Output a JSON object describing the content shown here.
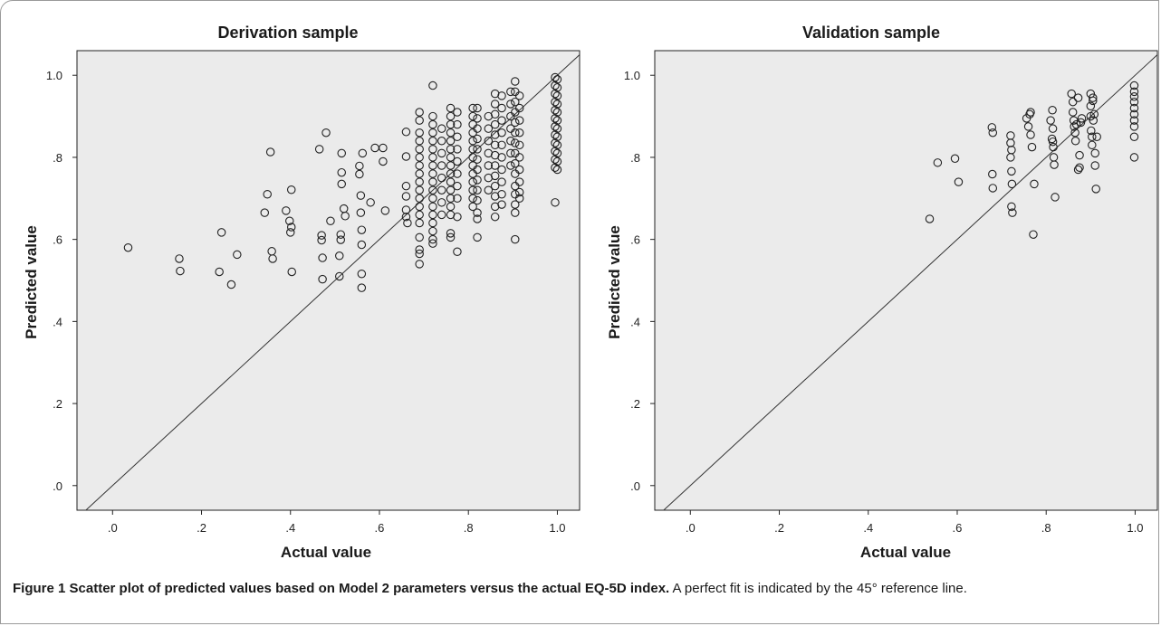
{
  "chart_data": [
    {
      "type": "scatter",
      "title": "Derivation sample",
      "xlabel": "Actual value",
      "ylabel": "Predicted value",
      "xlim": [
        -0.08,
        1.05
      ],
      "ylim": [
        -0.06,
        1.06
      ],
      "xticks": [
        0.0,
        0.2,
        0.4,
        0.6,
        0.8,
        1.0
      ],
      "xtick_labels": [
        ".0",
        ".2",
        ".4",
        ".6",
        ".8",
        "1.0"
      ],
      "yticks": [
        0.0,
        0.2,
        0.4,
        0.6,
        0.8,
        1.0
      ],
      "ytick_labels": [
        ".0",
        ".2",
        ".4",
        ".6",
        ".8",
        "1.0"
      ],
      "reference_line": "45-degree (y = x)",
      "background": "#ebebeb",
      "grid": false,
      "points": [
        [
          0.035,
          0.58
        ],
        [
          0.15,
          0.553
        ],
        [
          0.152,
          0.523
        ],
        [
          0.24,
          0.521
        ],
        [
          0.245,
          0.617
        ],
        [
          0.267,
          0.49
        ],
        [
          0.28,
          0.563
        ],
        [
          0.342,
          0.665
        ],
        [
          0.348,
          0.71
        ],
        [
          0.355,
          0.813
        ],
        [
          0.358,
          0.571
        ],
        [
          0.36,
          0.553
        ],
        [
          0.39,
          0.67
        ],
        [
          0.398,
          0.645
        ],
        [
          0.4,
          0.617
        ],
        [
          0.402,
          0.63
        ],
        [
          0.402,
          0.721
        ],
        [
          0.403,
          0.521
        ],
        [
          0.465,
          0.82
        ],
        [
          0.47,
          0.61
        ],
        [
          0.47,
          0.598
        ],
        [
          0.472,
          0.555
        ],
        [
          0.472,
          0.503
        ],
        [
          0.48,
          0.86
        ],
        [
          0.49,
          0.645
        ],
        [
          0.51,
          0.51
        ],
        [
          0.51,
          0.56
        ],
        [
          0.513,
          0.612
        ],
        [
          0.513,
          0.599
        ],
        [
          0.515,
          0.81
        ],
        [
          0.515,
          0.763
        ],
        [
          0.515,
          0.735
        ],
        [
          0.52,
          0.675
        ],
        [
          0.523,
          0.657
        ],
        [
          0.555,
          0.779
        ],
        [
          0.555,
          0.759
        ],
        [
          0.558,
          0.707
        ],
        [
          0.558,
          0.665
        ],
        [
          0.56,
          0.623
        ],
        [
          0.56,
          0.587
        ],
        [
          0.56,
          0.516
        ],
        [
          0.56,
          0.482
        ],
        [
          0.562,
          0.81
        ],
        [
          0.58,
          0.69
        ],
        [
          0.59,
          0.823
        ],
        [
          0.608,
          0.823
        ],
        [
          0.608,
          0.79
        ],
        [
          0.613,
          0.67
        ],
        [
          0.66,
          0.862
        ],
        [
          0.66,
          0.802
        ],
        [
          0.66,
          0.73
        ],
        [
          0.66,
          0.705
        ],
        [
          0.66,
          0.672
        ],
        [
          0.66,
          0.655
        ],
        [
          0.663,
          0.64
        ],
        [
          0.69,
          0.91
        ],
        [
          0.69,
          0.89
        ],
        [
          0.69,
          0.86
        ],
        [
          0.69,
          0.84
        ],
        [
          0.69,
          0.82
        ],
        [
          0.69,
          0.8
        ],
        [
          0.69,
          0.78
        ],
        [
          0.69,
          0.76
        ],
        [
          0.69,
          0.74
        ],
        [
          0.69,
          0.72
        ],
        [
          0.69,
          0.7
        ],
        [
          0.69,
          0.68
        ],
        [
          0.69,
          0.66
        ],
        [
          0.69,
          0.64
        ],
        [
          0.69,
          0.605
        ],
        [
          0.69,
          0.575
        ],
        [
          0.69,
          0.565
        ],
        [
          0.69,
          0.54
        ],
        [
          0.72,
          0.975
        ],
        [
          0.72,
          0.9
        ],
        [
          0.72,
          0.88
        ],
        [
          0.72,
          0.86
        ],
        [
          0.72,
          0.84
        ],
        [
          0.72,
          0.82
        ],
        [
          0.72,
          0.8
        ],
        [
          0.72,
          0.78
        ],
        [
          0.72,
          0.76
        ],
        [
          0.72,
          0.74
        ],
        [
          0.72,
          0.72
        ],
        [
          0.72,
          0.7
        ],
        [
          0.72,
          0.68
        ],
        [
          0.72,
          0.66
        ],
        [
          0.72,
          0.64
        ],
        [
          0.72,
          0.62
        ],
        [
          0.72,
          0.6
        ],
        [
          0.72,
          0.59
        ],
        [
          0.74,
          0.87
        ],
        [
          0.74,
          0.84
        ],
        [
          0.74,
          0.81
        ],
        [
          0.74,
          0.78
        ],
        [
          0.74,
          0.75
        ],
        [
          0.74,
          0.72
        ],
        [
          0.74,
          0.69
        ],
        [
          0.74,
          0.66
        ],
        [
          0.76,
          0.92
        ],
        [
          0.76,
          0.9
        ],
        [
          0.76,
          0.88
        ],
        [
          0.76,
          0.86
        ],
        [
          0.76,
          0.84
        ],
        [
          0.76,
          0.82
        ],
        [
          0.76,
          0.8
        ],
        [
          0.76,
          0.78
        ],
        [
          0.76,
          0.76
        ],
        [
          0.76,
          0.74
        ],
        [
          0.76,
          0.72
        ],
        [
          0.76,
          0.7
        ],
        [
          0.76,
          0.68
        ],
        [
          0.76,
          0.66
        ],
        [
          0.76,
          0.615
        ],
        [
          0.76,
          0.605
        ],
        [
          0.775,
          0.91
        ],
        [
          0.775,
          0.88
        ],
        [
          0.775,
          0.85
        ],
        [
          0.775,
          0.82
        ],
        [
          0.775,
          0.79
        ],
        [
          0.775,
          0.76
        ],
        [
          0.775,
          0.73
        ],
        [
          0.775,
          0.7
        ],
        [
          0.775,
          0.655
        ],
        [
          0.775,
          0.57
        ],
        [
          0.81,
          0.92
        ],
        [
          0.81,
          0.9
        ],
        [
          0.81,
          0.88
        ],
        [
          0.81,
          0.86
        ],
        [
          0.81,
          0.84
        ],
        [
          0.81,
          0.82
        ],
        [
          0.81,
          0.8
        ],
        [
          0.81,
          0.78
        ],
        [
          0.81,
          0.76
        ],
        [
          0.81,
          0.74
        ],
        [
          0.81,
          0.72
        ],
        [
          0.81,
          0.7
        ],
        [
          0.81,
          0.68
        ],
        [
          0.82,
          0.92
        ],
        [
          0.82,
          0.895
        ],
        [
          0.82,
          0.87
        ],
        [
          0.82,
          0.845
        ],
        [
          0.82,
          0.82
        ],
        [
          0.82,
          0.795
        ],
        [
          0.82,
          0.77
        ],
        [
          0.82,
          0.745
        ],
        [
          0.82,
          0.72
        ],
        [
          0.82,
          0.695
        ],
        [
          0.82,
          0.665
        ],
        [
          0.82,
          0.65
        ],
        [
          0.82,
          0.605
        ],
        [
          0.845,
          0.9
        ],
        [
          0.845,
          0.87
        ],
        [
          0.845,
          0.84
        ],
        [
          0.845,
          0.81
        ],
        [
          0.845,
          0.78
        ],
        [
          0.845,
          0.75
        ],
        [
          0.845,
          0.72
        ],
        [
          0.86,
          0.955
        ],
        [
          0.86,
          0.93
        ],
        [
          0.86,
          0.905
        ],
        [
          0.86,
          0.88
        ],
        [
          0.86,
          0.855
        ],
        [
          0.86,
          0.83
        ],
        [
          0.86,
          0.805
        ],
        [
          0.86,
          0.78
        ],
        [
          0.86,
          0.755
        ],
        [
          0.86,
          0.73
        ],
        [
          0.86,
          0.705
        ],
        [
          0.86,
          0.68
        ],
        [
          0.86,
          0.655
        ],
        [
          0.875,
          0.95
        ],
        [
          0.875,
          0.92
        ],
        [
          0.875,
          0.89
        ],
        [
          0.875,
          0.86
        ],
        [
          0.875,
          0.83
        ],
        [
          0.875,
          0.8
        ],
        [
          0.875,
          0.77
        ],
        [
          0.875,
          0.74
        ],
        [
          0.875,
          0.71
        ],
        [
          0.875,
          0.685
        ],
        [
          0.895,
          0.96
        ],
        [
          0.895,
          0.93
        ],
        [
          0.895,
          0.9
        ],
        [
          0.895,
          0.87
        ],
        [
          0.895,
          0.84
        ],
        [
          0.895,
          0.81
        ],
        [
          0.895,
          0.78
        ],
        [
          0.905,
          0.985
        ],
        [
          0.905,
          0.96
        ],
        [
          0.905,
          0.935
        ],
        [
          0.905,
          0.91
        ],
        [
          0.905,
          0.885
        ],
        [
          0.905,
          0.86
        ],
        [
          0.905,
          0.835
        ],
        [
          0.905,
          0.81
        ],
        [
          0.905,
          0.785
        ],
        [
          0.905,
          0.76
        ],
        [
          0.905,
          0.73
        ],
        [
          0.905,
          0.71
        ],
        [
          0.905,
          0.685
        ],
        [
          0.905,
          0.665
        ],
        [
          0.905,
          0.6
        ],
        [
          0.915,
          0.95
        ],
        [
          0.915,
          0.92
        ],
        [
          0.915,
          0.89
        ],
        [
          0.915,
          0.86
        ],
        [
          0.915,
          0.83
        ],
        [
          0.915,
          0.8
        ],
        [
          0.915,
          0.77
        ],
        [
          0.915,
          0.74
        ],
        [
          0.915,
          0.715
        ],
        [
          0.915,
          0.7
        ],
        [
          0.995,
          0.995
        ],
        [
          0.995,
          0.975
        ],
        [
          0.995,
          0.955
        ],
        [
          0.995,
          0.935
        ],
        [
          0.995,
          0.915
        ],
        [
          0.995,
          0.895
        ],
        [
          0.995,
          0.875
        ],
        [
          0.995,
          0.855
        ],
        [
          0.995,
          0.835
        ],
        [
          0.995,
          0.815
        ],
        [
          0.995,
          0.795
        ],
        [
          0.995,
          0.775
        ],
        [
          0.995,
          0.69
        ],
        [
          1.0,
          0.99
        ],
        [
          1.0,
          0.97
        ],
        [
          1.0,
          0.95
        ],
        [
          1.0,
          0.93
        ],
        [
          1.0,
          0.91
        ],
        [
          1.0,
          0.89
        ],
        [
          1.0,
          0.87
        ],
        [
          1.0,
          0.85
        ],
        [
          1.0,
          0.83
        ],
        [
          1.0,
          0.81
        ],
        [
          1.0,
          0.79
        ],
        [
          1.0,
          0.77
        ]
      ]
    },
    {
      "type": "scatter",
      "title": "Validation sample",
      "xlabel": "Actual value",
      "ylabel": "Predicted value",
      "xlim": [
        -0.08,
        1.05
      ],
      "ylim": [
        -0.06,
        1.06
      ],
      "xticks": [
        0.0,
        0.2,
        0.4,
        0.6,
        0.8,
        1.0
      ],
      "xtick_labels": [
        ".0",
        ".2",
        ".4",
        ".6",
        ".8",
        "1.0"
      ],
      "yticks": [
        0.0,
        0.2,
        0.4,
        0.6,
        0.8,
        1.0
      ],
      "ytick_labels": [
        ".0",
        ".2",
        ".4",
        ".6",
        ".8",
        "1.0"
      ],
      "reference_line": "45-degree (y = x)",
      "background": "#ebebeb",
      "grid": false,
      "points": [
        [
          0.538,
          0.65
        ],
        [
          0.556,
          0.787
        ],
        [
          0.595,
          0.797
        ],
        [
          0.603,
          0.74
        ],
        [
          0.678,
          0.873
        ],
        [
          0.68,
          0.86
        ],
        [
          0.679,
          0.759
        ],
        [
          0.68,
          0.725
        ],
        [
          0.72,
          0.853
        ],
        [
          0.72,
          0.835
        ],
        [
          0.722,
          0.818
        ],
        [
          0.72,
          0.8
        ],
        [
          0.722,
          0.766
        ],
        [
          0.723,
          0.735
        ],
        [
          0.722,
          0.68
        ],
        [
          0.724,
          0.665
        ],
        [
          0.756,
          0.895
        ],
        [
          0.76,
          0.875
        ],
        [
          0.763,
          0.905
        ],
        [
          0.765,
          0.91
        ],
        [
          0.765,
          0.855
        ],
        [
          0.768,
          0.825
        ],
        [
          0.771,
          0.612
        ],
        [
          0.773,
          0.735
        ],
        [
          0.81,
          0.89
        ],
        [
          0.813,
          0.845
        ],
        [
          0.814,
          0.915
        ],
        [
          0.815,
          0.87
        ],
        [
          0.815,
          0.838
        ],
        [
          0.816,
          0.825
        ],
        [
          0.817,
          0.8
        ],
        [
          0.818,
          0.782
        ],
        [
          0.82,
          0.703
        ],
        [
          0.857,
          0.955
        ],
        [
          0.86,
          0.935
        ],
        [
          0.86,
          0.91
        ],
        [
          0.862,
          0.89
        ],
        [
          0.863,
          0.875
        ],
        [
          0.865,
          0.86
        ],
        [
          0.866,
          0.84
        ],
        [
          0.868,
          0.88
        ],
        [
          0.872,
          0.945
        ],
        [
          0.872,
          0.77
        ],
        [
          0.875,
          0.775
        ],
        [
          0.875,
          0.805
        ],
        [
          0.878,
          0.885
        ],
        [
          0.88,
          0.895
        ],
        [
          0.9,
          0.955
        ],
        [
          0.9,
          0.925
        ],
        [
          0.9,
          0.9
        ],
        [
          0.901,
          0.865
        ],
        [
          0.903,
          0.85
        ],
        [
          0.903,
          0.83
        ],
        [
          0.905,
          0.938
        ],
        [
          0.905,
          0.945
        ],
        [
          0.906,
          0.89
        ],
        [
          0.908,
          0.905
        ],
        [
          0.91,
          0.81
        ],
        [
          0.91,
          0.78
        ],
        [
          0.912,
          0.723
        ],
        [
          0.914,
          0.85
        ],
        [
          0.998,
          0.975
        ],
        [
          0.998,
          0.96
        ],
        [
          0.998,
          0.948
        ],
        [
          0.998,
          0.935
        ],
        [
          0.998,
          0.92
        ],
        [
          0.998,
          0.905
        ],
        [
          0.998,
          0.89
        ],
        [
          0.998,
          0.875
        ],
        [
          0.998,
          0.85
        ],
        [
          0.998,
          0.8
        ]
      ]
    }
  ],
  "caption": {
    "bold": "Figure 1 Scatter plot of predicted values based on Model 2 parameters versus the actual EQ-5D index.",
    "text": " A perfect fit is indicated by the 45° reference line."
  }
}
